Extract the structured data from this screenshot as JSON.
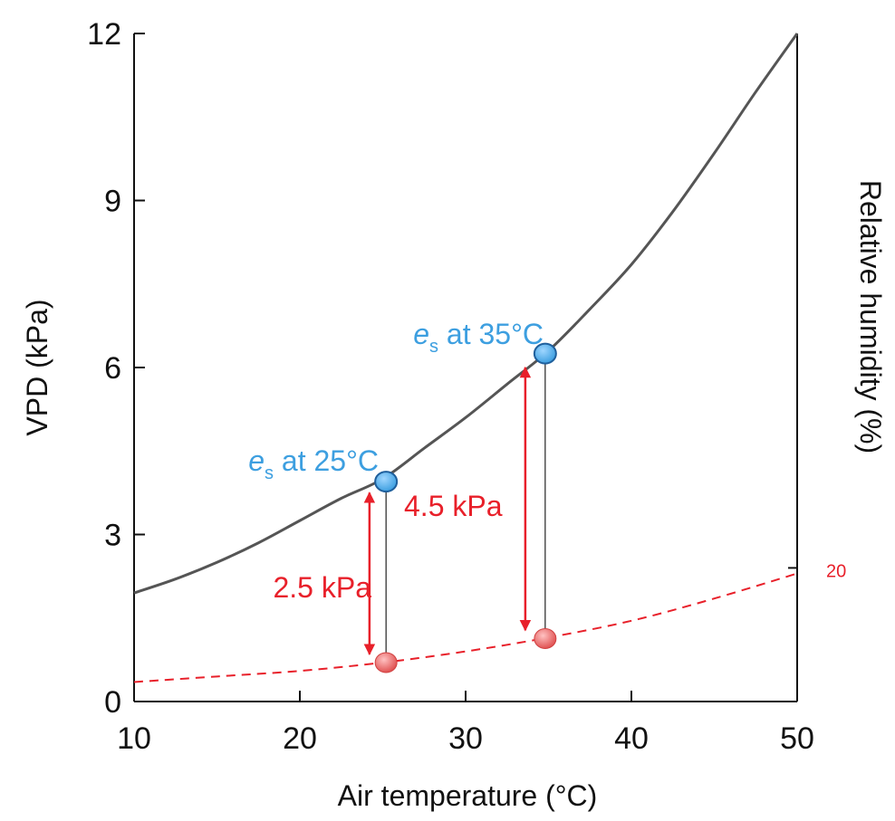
{
  "chart_data": {
    "type": "line",
    "xlabel": "Air temperature (°C)",
    "ylabel": "VPD (kPa)",
    "y2label": "Relative humidity (%)",
    "xlim": [
      10,
      50
    ],
    "ylim": [
      0,
      12
    ],
    "x_ticks": [
      10,
      20,
      30,
      40,
      50
    ],
    "y_ticks": [
      0,
      3,
      6,
      9,
      12
    ],
    "y2_ticks": [
      {
        "label": "20",
        "y": 2.4
      }
    ],
    "grid": false,
    "legend": "none",
    "series": [
      {
        "style": "solid",
        "color": "#555555",
        "x": [
          10,
          12.5,
          15,
          17.5,
          20,
          22.5,
          25,
          27.5,
          30,
          32.5,
          35,
          37.5,
          40,
          42.5,
          45,
          47.5,
          50
        ],
        "y": [
          1.95,
          2.2,
          2.5,
          2.85,
          3.25,
          3.65,
          4.0,
          4.55,
          5.1,
          5.7,
          6.3,
          7.05,
          7.85,
          8.8,
          9.85,
          10.95,
          12.0
        ]
      },
      {
        "style": "dashed",
        "color": "#e8202a",
        "x": [
          10,
          15,
          20,
          25,
          30,
          35,
          40,
          45,
          50
        ],
        "y": [
          0.35,
          0.45,
          0.55,
          0.7,
          0.9,
          1.15,
          1.45,
          1.85,
          2.3
        ]
      }
    ],
    "points": [
      {
        "x": 25.2,
        "y": 3.95,
        "color": "#3d9fe0",
        "label_main": "e",
        "label_sub": "s",
        "label_rest": " at 25°C"
      },
      {
        "x": 34.8,
        "y": 6.25,
        "color": "#3d9fe0",
        "label_main": "e",
        "label_sub": "s",
        "label_rest": " at 35°C"
      },
      {
        "x": 25.2,
        "y": 0.7,
        "color": "#e86b6b"
      },
      {
        "x": 34.8,
        "y": 1.13,
        "color": "#e86b6b"
      }
    ],
    "arrows": [
      {
        "x": 24.2,
        "y_from": 3.75,
        "y_to": 0.85,
        "label": "2.5 kPa"
      },
      {
        "x": 33.6,
        "y_from": 6.0,
        "y_to": 1.28,
        "label": "4.5 kPa"
      }
    ],
    "colors": {
      "axis": "#111111",
      "blue": "#3d9fe0",
      "red": "#e8202a"
    }
  }
}
